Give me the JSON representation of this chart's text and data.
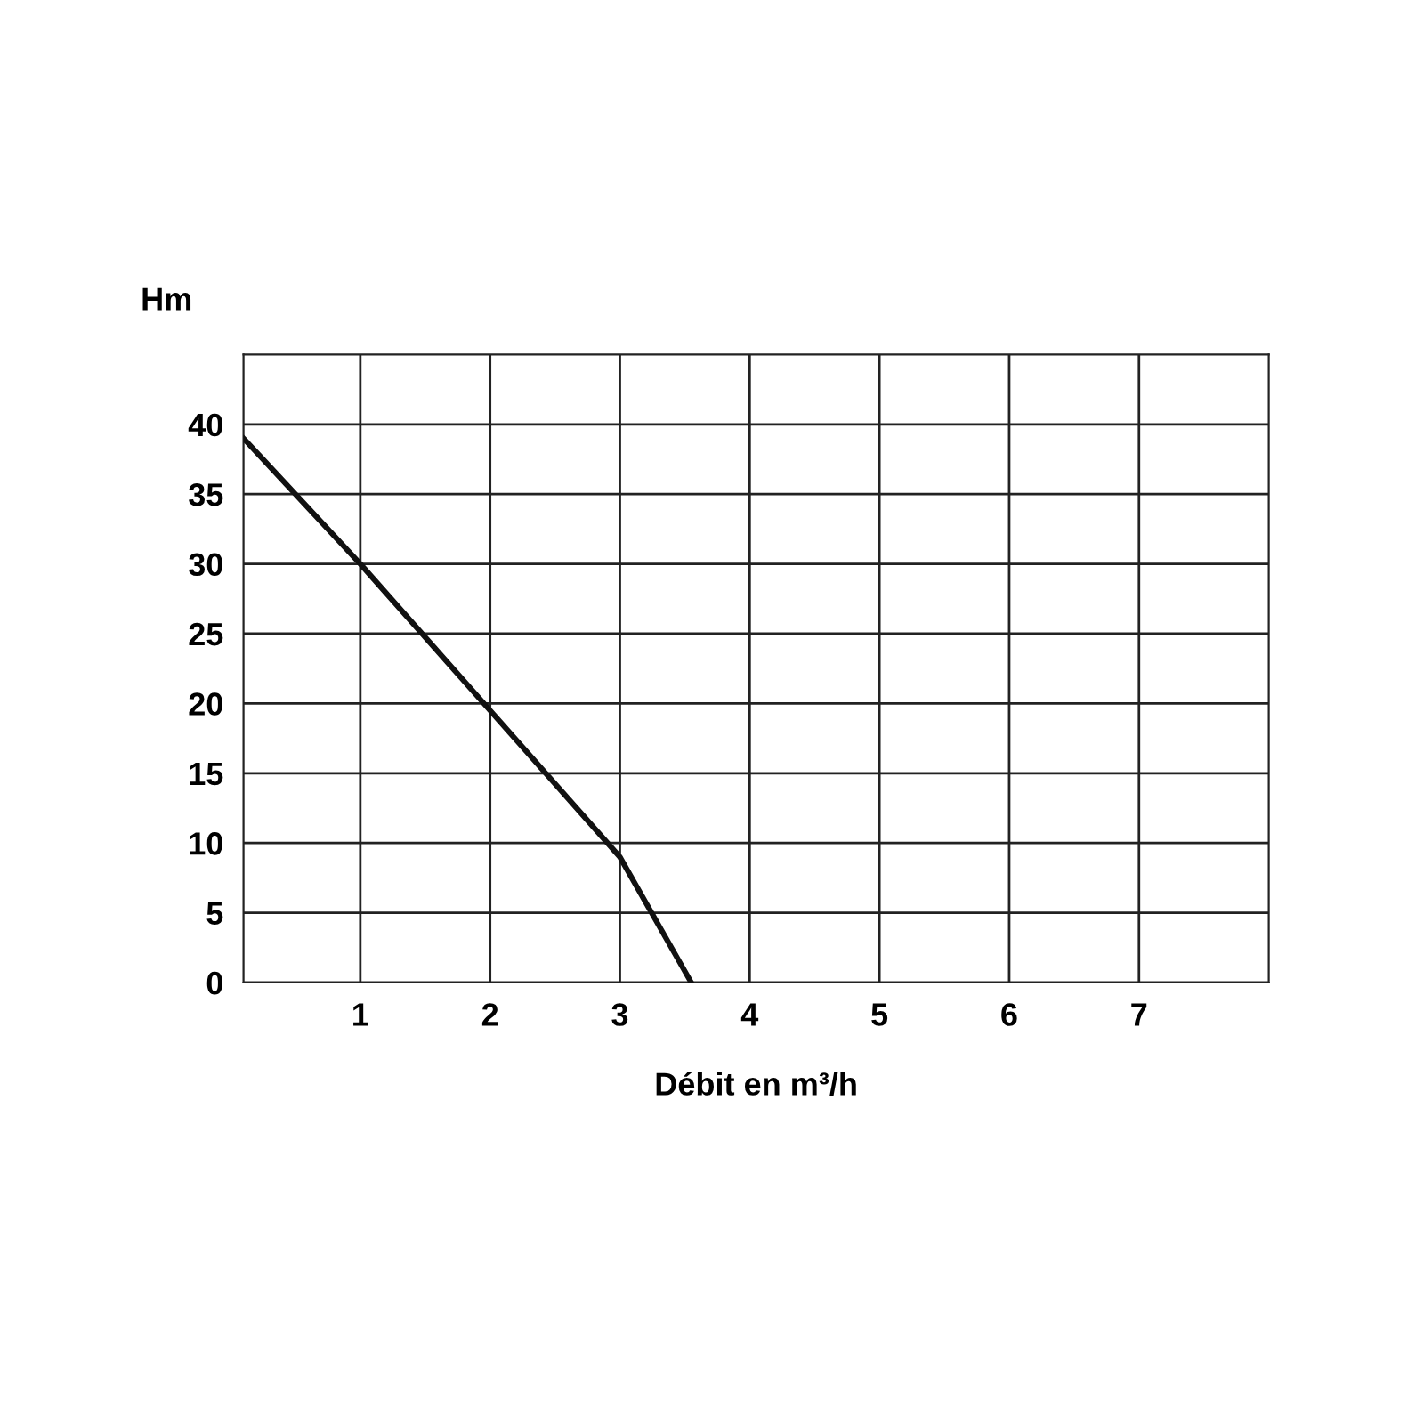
{
  "chart_data": {
    "type": "line",
    "xlabel": "Débit en m³/h",
    "ylabel": "Hm",
    "x": [
      0.1,
      1,
      2,
      3,
      3.55
    ],
    "series": [
      {
        "color": "#111111",
        "values": [
          39,
          30,
          19.5,
          9,
          0
        ]
      }
    ],
    "xlim": [
      0.1,
      8
    ],
    "xticks": [
      1,
      2,
      3,
      4,
      5,
      6,
      7
    ],
    "ylim": [
      0,
      45
    ],
    "yticks": [
      0,
      5,
      10,
      15,
      20,
      25,
      30,
      35,
      40
    ],
    "grid": true,
    "line_style": "solid"
  }
}
